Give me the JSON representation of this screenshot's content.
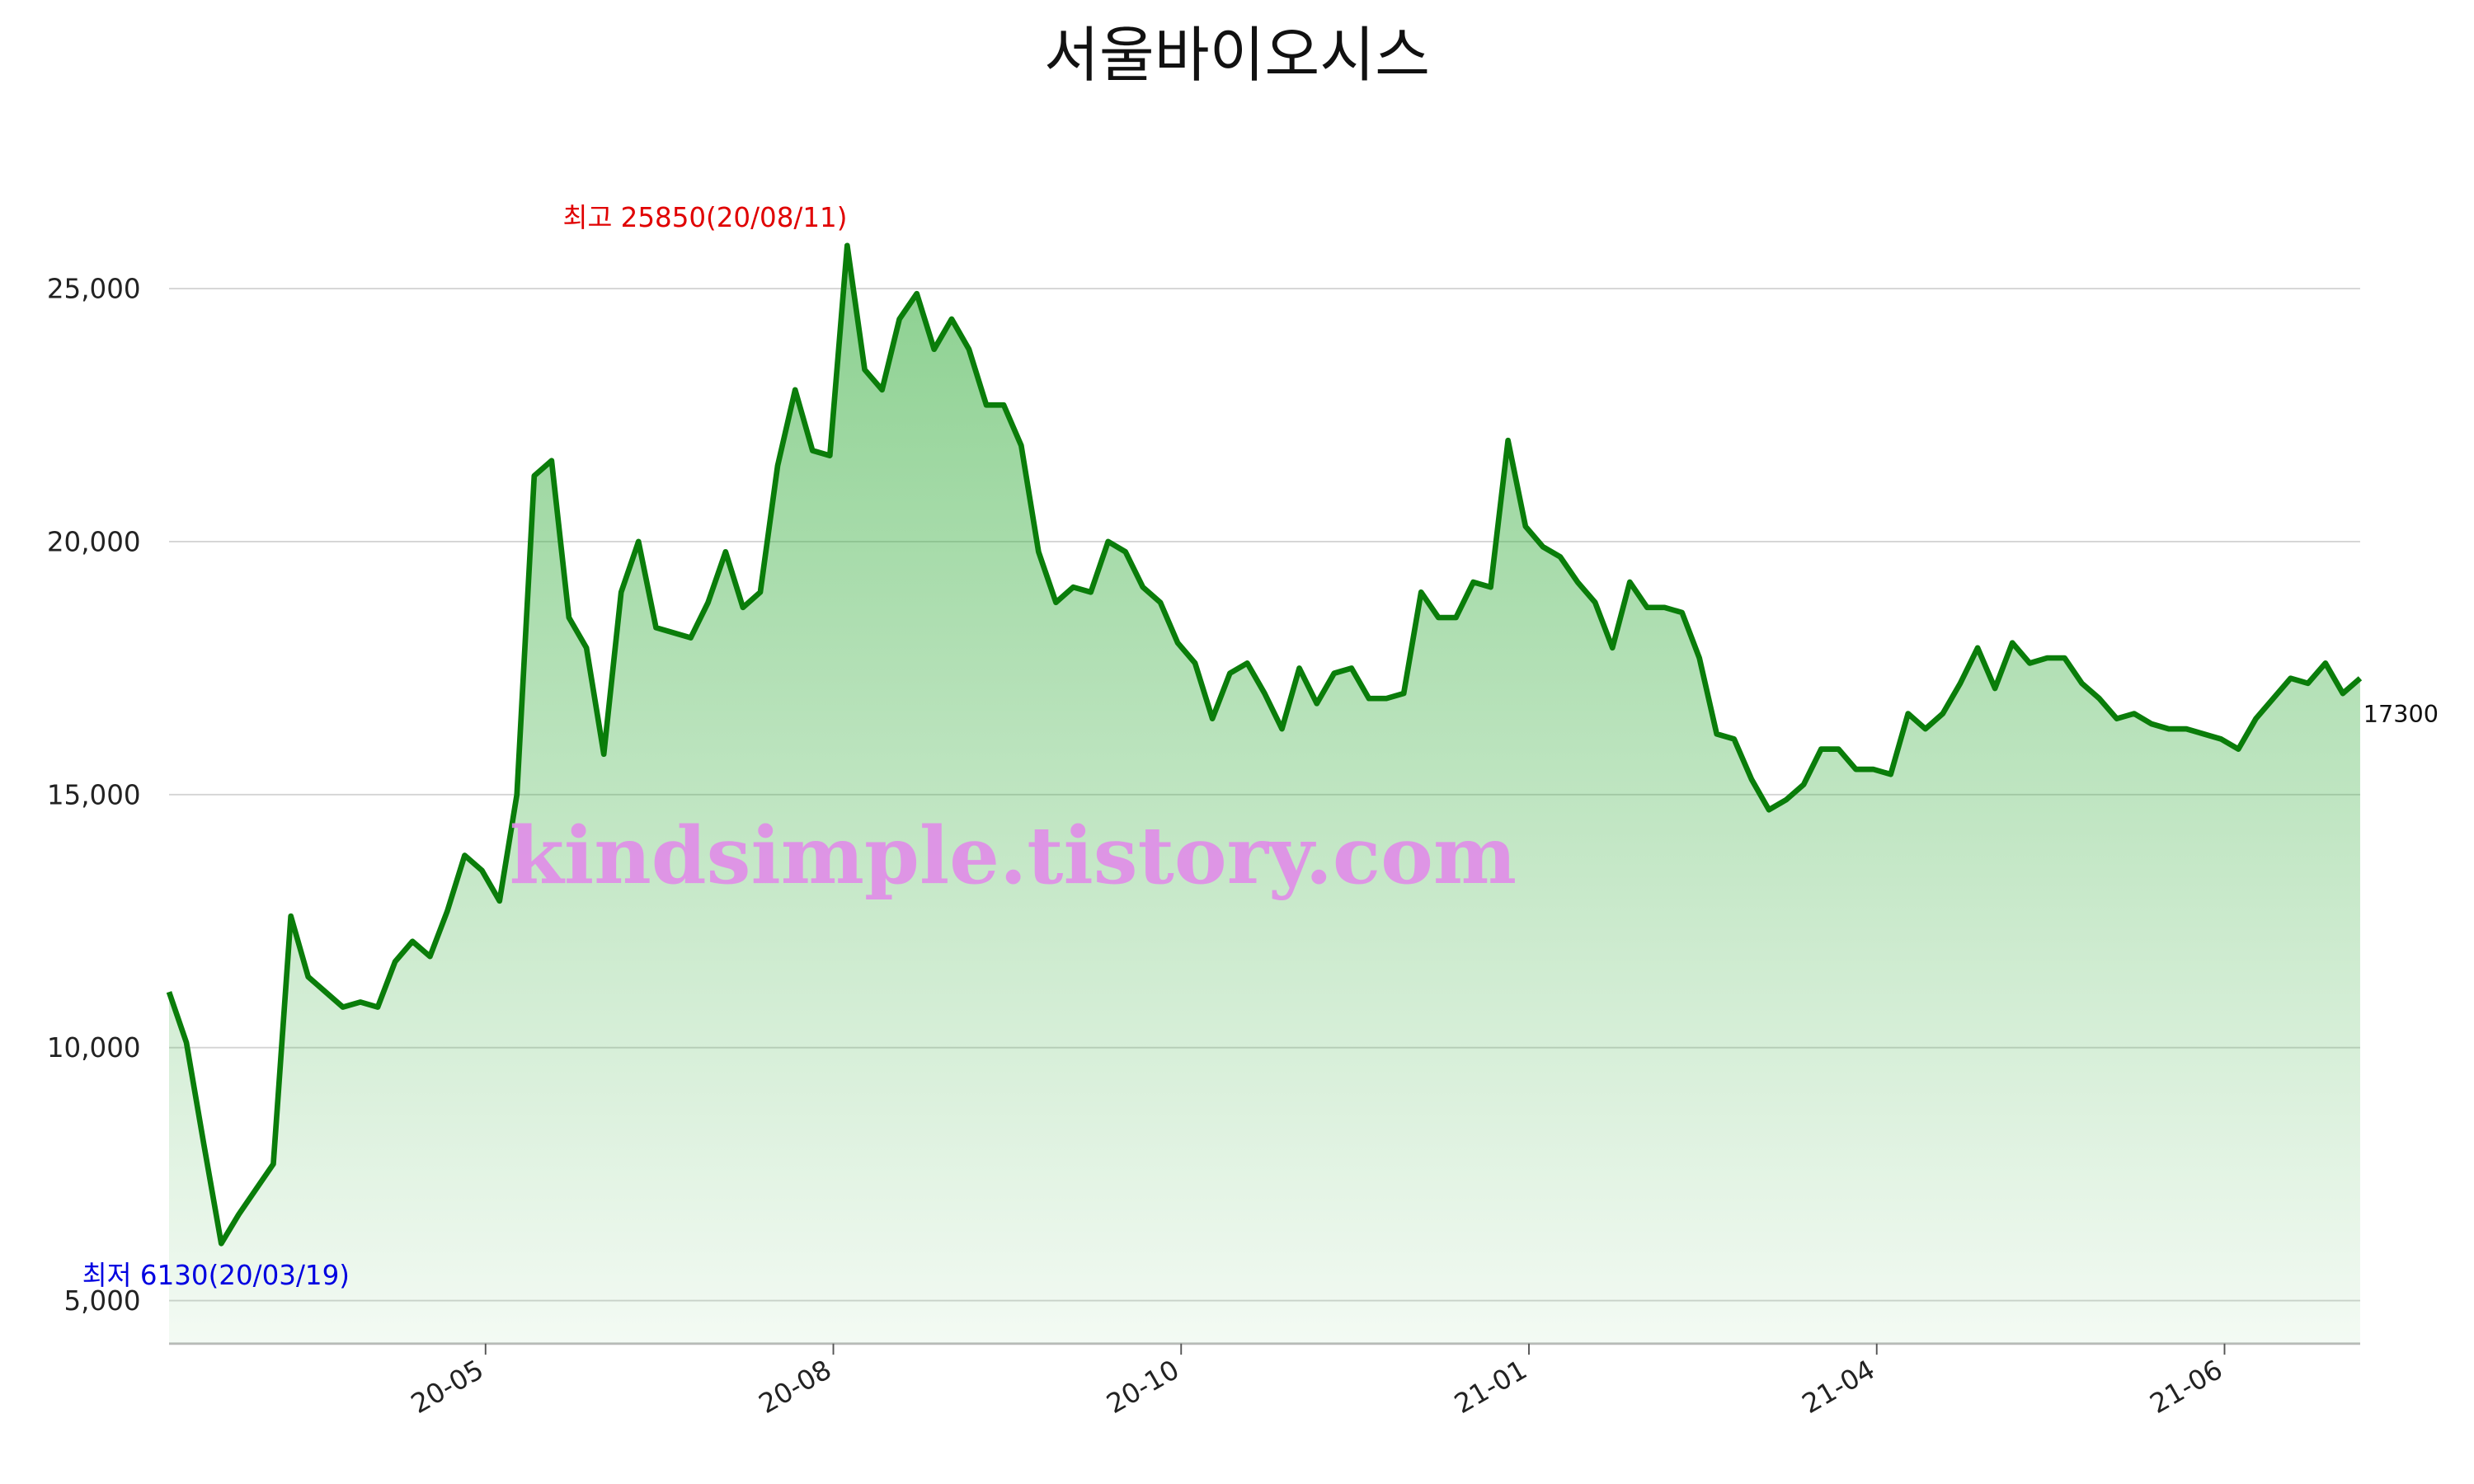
{
  "chart_data": {
    "type": "line",
    "title": "서울바이오시스",
    "values": [
      11100,
      10100,
      8100,
      6130,
      6700,
      7200,
      7700,
      12600,
      11400,
      11100,
      10800,
      10900,
      10800,
      11700,
      12100,
      11800,
      12700,
      13800,
      13500,
      12900,
      15000,
      21300,
      21600,
      18500,
      17900,
      15800,
      19000,
      20000,
      18300,
      18200,
      18100,
      18800,
      19800,
      18700,
      19000,
      21500,
      23000,
      21800,
      21700,
      25850,
      23400,
      23000,
      24400,
      24900,
      23800,
      24400,
      23800,
      22700,
      22700,
      21900,
      19800,
      18800,
      19100,
      19000,
      20000,
      19800,
      19100,
      18800,
      18000,
      17600,
      16500,
      17400,
      17600,
      17000,
      16300,
      17500,
      16800,
      17400,
      17500,
      16900,
      16900,
      17000,
      19000,
      18500,
      18500,
      19200,
      19100,
      22000,
      20300,
      19900,
      19700,
      19200,
      18800,
      17900,
      19200,
      18700,
      18700,
      18600,
      17700,
      16200,
      16100,
      15300,
      14700,
      14900,
      15200,
      15900,
      15900,
      15500,
      15500,
      15400,
      16600,
      16300,
      16600,
      17200,
      17900,
      17100,
      18000,
      17600,
      17700,
      17700,
      17200,
      16900,
      16500,
      16600,
      16400,
      16300,
      16300,
      16200,
      16100,
      15900,
      16500,
      16900,
      17300,
      17200,
      17600,
      17000,
      17300
    ],
    "color": "#0a7d0a",
    "fill_color": "#3cb043",
    "xlim": [
      0,
      126
    ],
    "xticks": [
      {
        "value": 18.2,
        "label": "20-05"
      },
      {
        "value": 38.2,
        "label": "20-08"
      },
      {
        "value": 58.2,
        "label": "20-10"
      },
      {
        "value": 78.2,
        "label": "21-01"
      },
      {
        "value": 98.2,
        "label": "21-04"
      },
      {
        "value": 118.2,
        "label": "21-06"
      }
    ],
    "ylim": [
      4150,
      27600
    ],
    "yticks": [
      {
        "value": 5000,
        "label": "5,000"
      },
      {
        "value": 10000,
        "label": "10,000"
      },
      {
        "value": 15000,
        "label": "15,000"
      },
      {
        "value": 20000,
        "label": "20,000"
      },
      {
        "value": 25000,
        "label": "25,000"
      }
    ],
    "grid": true,
    "max_label": {
      "text": "최고 25850(20/08/11)",
      "color": "#e00000"
    },
    "min_label": {
      "text": "최저 6130(20/03/19)",
      "color": "#0000e0"
    },
    "last_label": "17300",
    "watermark": {
      "text": "kindsimple.tistory.com",
      "color": "#e08ce8"
    }
  }
}
